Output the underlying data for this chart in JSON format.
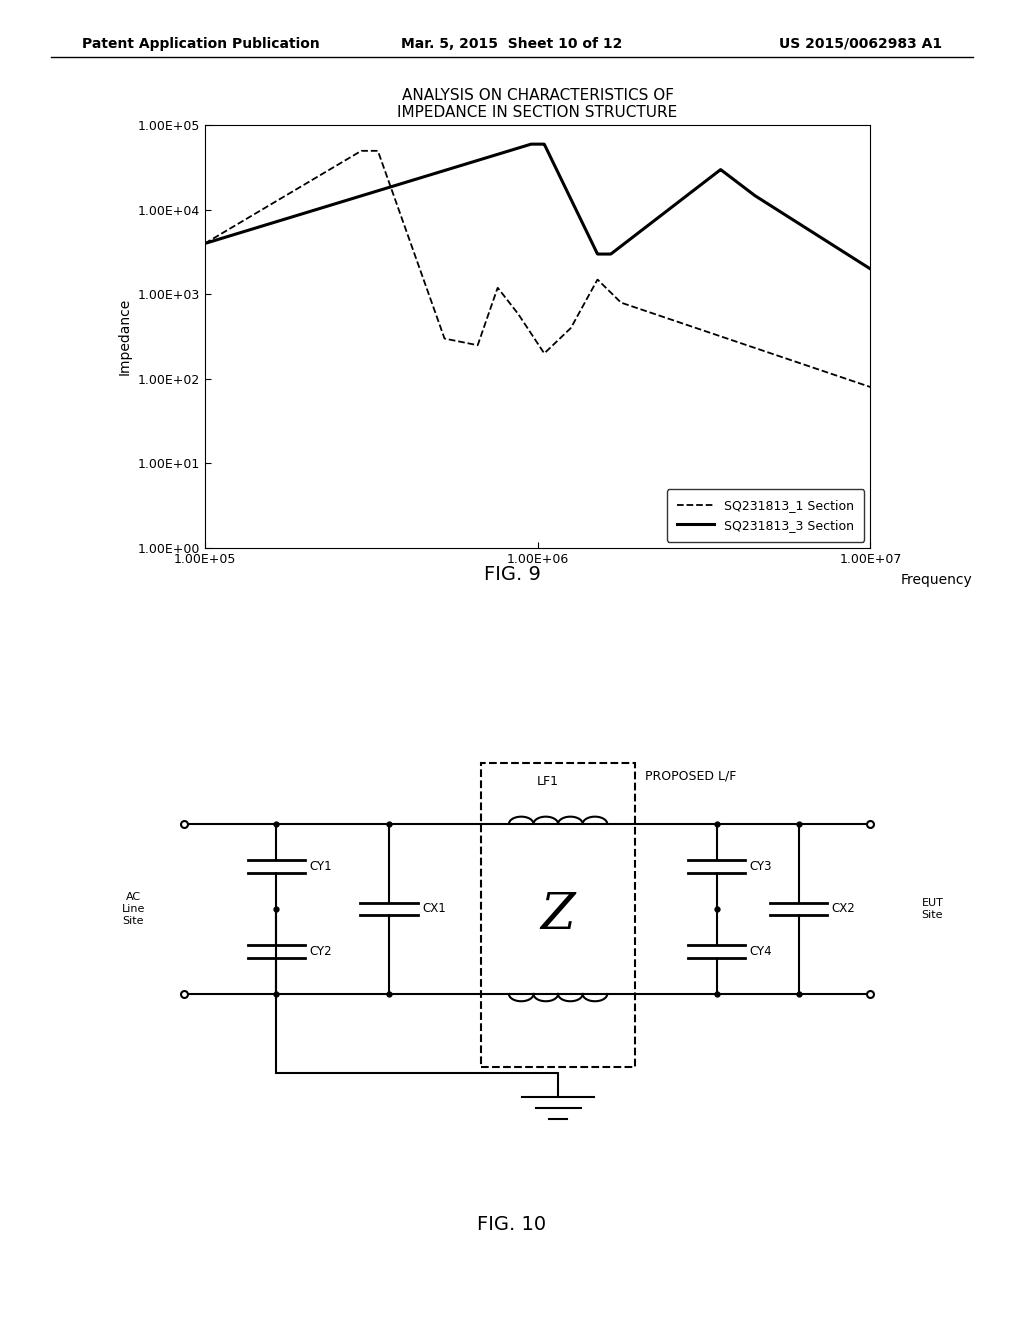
{
  "page_title_left": "Patent Application Publication",
  "page_title_center": "Mar. 5, 2015  Sheet 10 of 12",
  "page_title_right": "US 2015/0062983 A1",
  "chart_title_line1": "ANALYSIS ON CHARACTERISTICS OF",
  "chart_title_line2": "IMPEDANCE IN SECTION STRUCTURE",
  "ylabel": "Impedance",
  "xlabel": "Frequency",
  "legend1": "SQ231813_1 Section",
  "legend2": "SQ231813_3 Section",
  "fig9_label": "FIG. 9",
  "fig10_label": "FIG. 10",
  "bg_color": "#ffffff",
  "line_color": "#000000"
}
